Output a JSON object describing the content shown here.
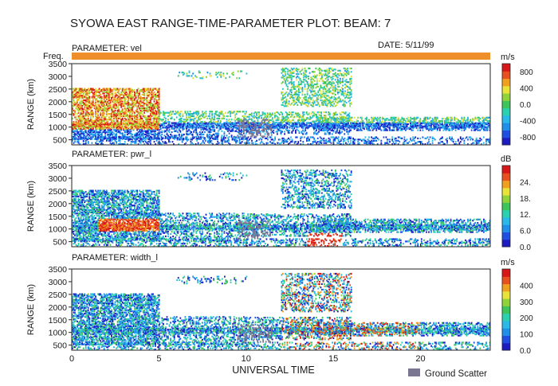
{
  "title": "SYOWA EAST RANGE-TIME-PARAMETER PLOT: BEAM: 7",
  "date_label": "DATE: 5/11/99",
  "freq_label": "Freq.",
  "xlabel": "UNIVERSAL TIME",
  "legend": {
    "ground_scatter": "Ground Scatter"
  },
  "colors": {
    "freq_bar": "#ef8f2c",
    "ground_scatter": "#7a7590",
    "colormap": [
      "#1c1cc0",
      "#1f4fe0",
      "#1f8fe8",
      "#2ab8e8",
      "#2ad0b0",
      "#3dc45a",
      "#8fd23a",
      "#e8e23a",
      "#f0a020",
      "#e85020",
      "#d81818"
    ]
  },
  "chart_data": {
    "type": "heatmap",
    "title": "SYOWA EAST RANGE-TIME-PARAMETER PLOT: BEAM: 7",
    "xlabel": "UNIVERSAL TIME",
    "xlim": [
      0,
      24
    ],
    "xticks": [
      0,
      5,
      10,
      15,
      20
    ],
    "panels": [
      {
        "parameter_label": "PARAMETER: vel",
        "ylabel": "RANGE (km)",
        "ylim": [
          300,
          3500
        ],
        "yticks": [
          500,
          1000,
          1500,
          2000,
          2500,
          3000,
          3500
        ],
        "unit": "m/s",
        "colorbar": {
          "min": -1000,
          "max": 1000,
          "ticks": [
            800,
            400,
            0.0,
            -400,
            -800
          ],
          "tick_labels": [
            "800",
            "400",
            "0.0",
            "-400",
            "-800"
          ]
        }
      },
      {
        "parameter_label": "PARAMETER: pwr_l",
        "ylabel": "RANGE (km)",
        "ylim": [
          300,
          3500
        ],
        "yticks": [
          500,
          1000,
          1500,
          2000,
          2500,
          3000,
          3500
        ],
        "unit": "dB",
        "colorbar": {
          "min": 0,
          "max": 30,
          "ticks": [
            24,
            18,
            12,
            6,
            0
          ],
          "tick_labels": [
            "24.",
            "18.",
            "12.",
            "6.0",
            "0.0"
          ]
        }
      },
      {
        "parameter_label": "PARAMETER: width_l",
        "ylabel": "RANGE (km)",
        "ylim": [
          300,
          3500
        ],
        "yticks": [
          500,
          1000,
          1500,
          2000,
          2500,
          3000,
          3500
        ],
        "unit": "m/s",
        "colorbar": {
          "min": 0,
          "max": 500,
          "ticks": [
            400,
            300,
            200,
            100,
            0
          ],
          "tick_labels": [
            "400",
            "300",
            "200",
            "100",
            "0.0"
          ]
        }
      }
    ]
  }
}
